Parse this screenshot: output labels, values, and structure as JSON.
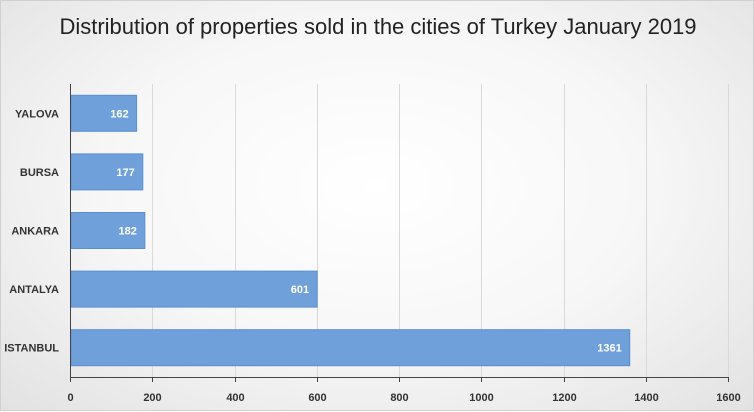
{
  "chart_data": {
    "type": "bar",
    "orientation": "horizontal",
    "title": "Distribution of properties sold in the cities of Turkey January 2019",
    "categories": [
      "YALOVA",
      "BURSA",
      "ANKARA",
      "ANTALYA",
      "ISTANBUL"
    ],
    "values": [
      162,
      177,
      182,
      601,
      1361
    ],
    "data_labels": [
      "162",
      "177",
      "182",
      "601",
      "1361"
    ],
    "xlabel": "",
    "ylabel": "",
    "xlim": [
      0,
      1600
    ],
    "x_ticks": [
      0,
      200,
      400,
      600,
      800,
      1000,
      1200,
      1400,
      1600
    ],
    "grid": true,
    "legend": "none",
    "bar_color": "#6fa0da",
    "bar_border_color": "#5b8fcf"
  }
}
